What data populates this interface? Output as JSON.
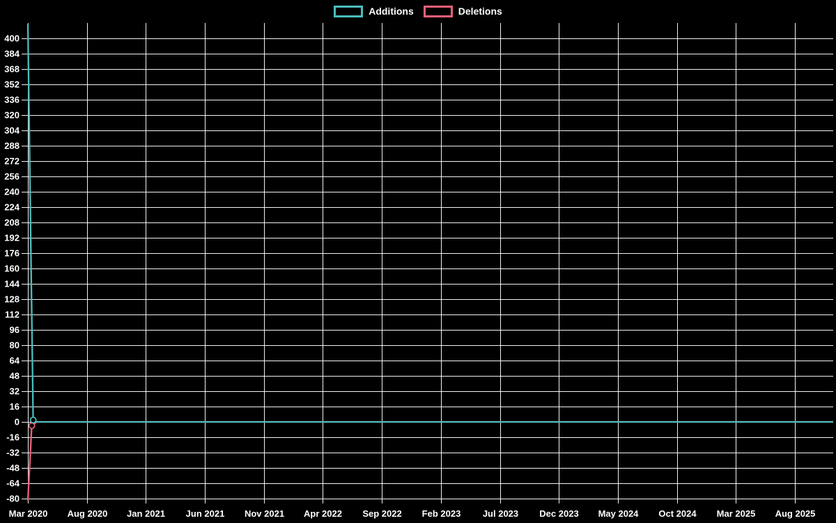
{
  "legend": {
    "items": [
      {
        "label": "Additions"
      },
      {
        "label": "Deletions"
      }
    ]
  },
  "chart_data": {
    "type": "line",
    "title": "",
    "background_color": "#000000",
    "grid_color": "#ffffff",
    "text_color": "#ffffff",
    "grid": true,
    "legend_position": "top-center",
    "x_axis": {
      "tick_labels": [
        "Mar 2020",
        "Aug 2020",
        "Jan 2021",
        "Jun 2021",
        "Nov 2021",
        "Apr 2022",
        "Sep 2022",
        "Feb 2023",
        "Jul 2023",
        "Dec 2023",
        "May 2024",
        "Oct 2024",
        "Mar 2025",
        "Aug 2025"
      ],
      "tick_interval_months": 5
    },
    "y_axis": {
      "min": -80,
      "max": 400,
      "step": 16,
      "tick_labels": [
        "400",
        "384",
        "368",
        "352",
        "336",
        "320",
        "304",
        "288",
        "272",
        "256",
        "240",
        "224",
        "208",
        "192",
        "176",
        "160",
        "144",
        "128",
        "112",
        "96",
        "80",
        "64",
        "48",
        "32",
        "16",
        "0",
        "-16",
        "-32",
        "-48",
        "-64",
        "-80"
      ]
    },
    "series": [
      {
        "name": "Additions",
        "color": "#4bbdbd",
        "points_months_value": [
          [
            0,
            415
          ],
          [
            0.45,
            2
          ],
          [
            0.75,
            0
          ],
          [
            68.25,
            0
          ]
        ],
        "markers_months_value": [
          [
            0.45,
            2
          ]
        ]
      },
      {
        "name": "Deletions",
        "color": "#ef5f78",
        "points_months_value": [
          [
            0,
            -82
          ],
          [
            0.33,
            -4
          ],
          [
            0.75,
            0
          ],
          [
            68.25,
            0
          ]
        ],
        "markers_months_value": [
          [
            0.33,
            -4
          ]
        ]
      }
    ]
  }
}
